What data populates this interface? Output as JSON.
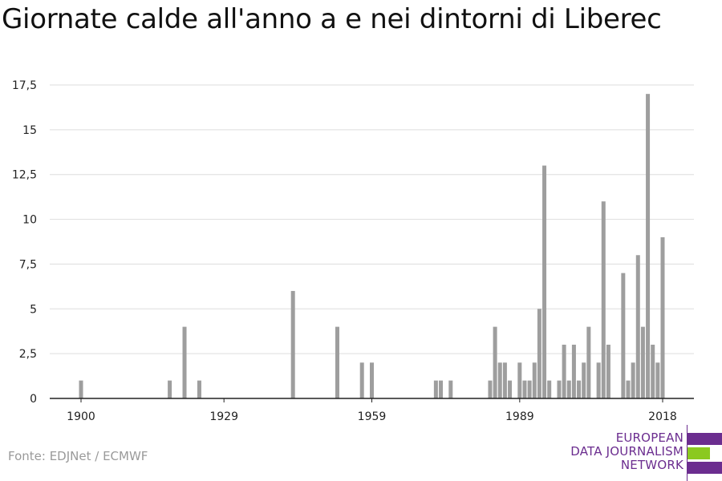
{
  "title": "Giornate calde all'anno a e nei dintorni di Liberec",
  "source": "Fonte: EDJNet / ECMWF",
  "logo": {
    "lines": [
      "EUROPEAN",
      "DATA JOURNALISM",
      "NETWORK"
    ],
    "colors": {
      "purple": "#6b2d8f",
      "green": "#8bc920"
    }
  },
  "chart_data": {
    "type": "bar",
    "title": "",
    "xlabel": "",
    "ylabel": "",
    "ylim": [
      0,
      17.5
    ],
    "yticks": [
      0,
      2.5,
      5,
      7.5,
      10,
      12.5,
      15,
      17.5
    ],
    "ytick_labels": [
      "0",
      "2,5",
      "5",
      "7,5",
      "10",
      "12,5",
      "15",
      "17,5"
    ],
    "xlim": [
      1900,
      2018
    ],
    "xticks": [
      1900,
      1929,
      1959,
      1989,
      2018
    ],
    "xtick_labels": [
      "1900",
      "1929",
      "1959",
      "1989",
      "2018"
    ],
    "grid": true,
    "bar_color": "#9e9e9e",
    "x": [
      1900,
      1918,
      1921,
      1924,
      1943,
      1952,
      1957,
      1959,
      1972,
      1973,
      1975,
      1983,
      1984,
      1985,
      1986,
      1987,
      1989,
      1990,
      1991,
      1992,
      1993,
      1994,
      1995,
      1997,
      1998,
      1999,
      2000,
      2001,
      2002,
      2003,
      2005,
      2006,
      2007,
      2010,
      2011,
      2012,
      2013,
      2014,
      2015,
      2016,
      2017,
      2018
    ],
    "values": [
      1,
      1,
      4,
      1,
      6,
      4,
      2,
      2,
      1,
      1,
      1,
      1,
      4,
      2,
      2,
      1,
      2,
      1,
      1,
      2,
      5,
      13,
      1,
      1,
      3,
      1,
      3,
      1,
      2,
      4,
      2,
      11,
      3,
      7,
      1,
      2,
      8,
      4,
      17,
      3,
      2,
      9
    ]
  }
}
